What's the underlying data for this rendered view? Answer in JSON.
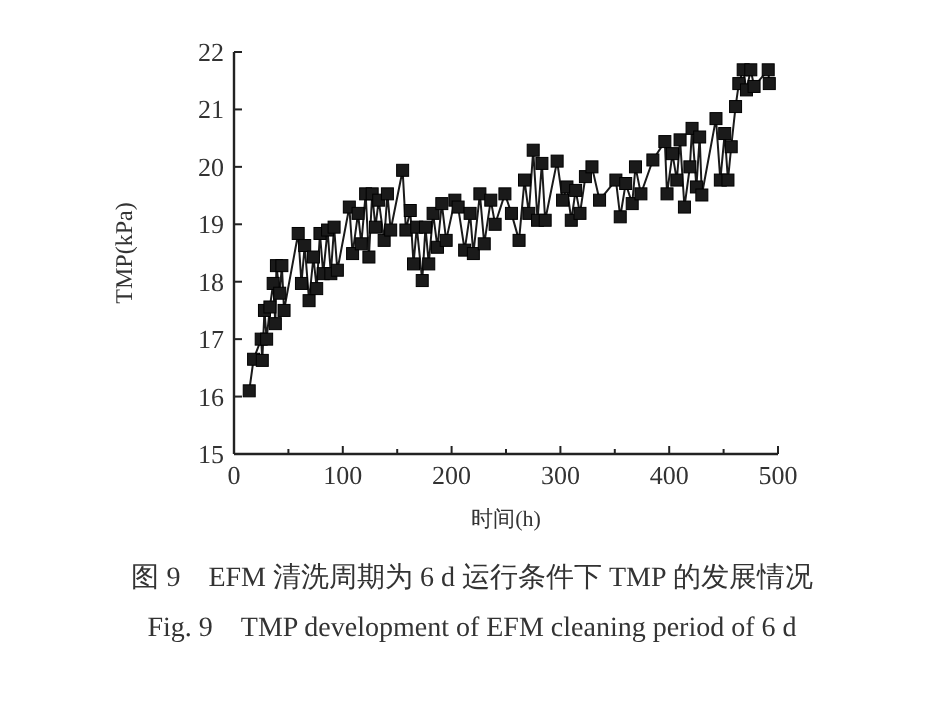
{
  "chart_data": {
    "type": "line",
    "xlabel": "时间(h)",
    "ylabel": "TMP(kPa)",
    "annotations": [
      "图 9　EFM 清洗周期为 6 d 运行条件下 TMP 的发展情况",
      "Fig. 9　TMP development of EFM cleaning period of 6 d"
    ],
    "xlim": [
      0,
      500
    ],
    "ylim": [
      15,
      22
    ],
    "xticks": [
      0,
      {
        "value": 50,
        "label": null
      },
      100,
      {
        "value": 150,
        "label": null
      },
      200,
      {
        "value": 250,
        "label": null
      },
      300,
      {
        "value": 350,
        "label": null
      },
      400,
      {
        "value": 450,
        "label": null
      },
      500
    ],
    "yticks": [
      15,
      16,
      17,
      18,
      19,
      20,
      21,
      22
    ],
    "marker": "square",
    "line_style": "solid",
    "grid": false,
    "series": [
      {
        "color": "#1a1a1a",
        "x": [
          14,
          18,
          25,
          26,
          28,
          30,
          33,
          36,
          38,
          39,
          42,
          44,
          46,
          59,
          62,
          65,
          69,
          73,
          76,
          79,
          82,
          86,
          89,
          92,
          95,
          106,
          109,
          114,
          117,
          121,
          124,
          127,
          130,
          133,
          138,
          141,
          144,
          155,
          158,
          162,
          165,
          168,
          173,
          176,
          179,
          183,
          187,
          191,
          195,
          203,
          206,
          212,
          217,
          220,
          226,
          230,
          236,
          240,
          249,
          255,
          262,
          267,
          271,
          275,
          279,
          283,
          286,
          297,
          302,
          306,
          310,
          314,
          318,
          323,
          329,
          336,
          351,
          355,
          360,
          366,
          369,
          374,
          385,
          396,
          398,
          403,
          407,
          410,
          414,
          419,
          421,
          425,
          428,
          430,
          443,
          447,
          451,
          454,
          457,
          461,
          464,
          468,
          471,
          475,
          478,
          491,
          492
        ],
        "values": [
          16.1,
          16.65,
          17.0,
          16.63,
          17.5,
          17.0,
          17.56,
          17.97,
          17.27,
          18.28,
          17.8,
          18.28,
          17.5,
          18.84,
          17.97,
          18.63,
          17.67,
          18.43,
          17.88,
          18.84,
          18.14,
          18.9,
          18.14,
          18.95,
          18.2,
          19.3,
          18.49,
          19.19,
          18.66,
          19.53,
          18.43,
          19.53,
          18.95,
          19.42,
          18.72,
          19.53,
          18.9,
          19.94,
          18.9,
          19.24,
          18.31,
          18.95,
          18.02,
          18.95,
          18.31,
          19.19,
          18.6,
          19.36,
          18.72,
          19.42,
          19.3,
          18.55,
          19.19,
          18.49,
          19.53,
          18.66,
          19.42,
          19.0,
          19.53,
          19.19,
          18.72,
          19.77,
          19.19,
          20.29,
          19.07,
          20.06,
          19.07,
          20.1,
          19.42,
          19.65,
          19.07,
          19.59,
          19.19,
          19.83,
          20.0,
          19.42,
          19.77,
          19.13,
          19.71,
          19.36,
          20.0,
          19.53,
          20.12,
          20.44,
          19.53,
          20.23,
          19.77,
          20.47,
          19.3,
          20.0,
          20.67,
          19.65,
          20.52,
          19.51,
          20.84,
          19.77,
          20.58,
          19.77,
          20.35,
          21.05,
          21.45,
          21.69,
          21.34,
          21.69,
          21.4,
          21.69,
          21.45
        ]
      }
    ]
  }
}
